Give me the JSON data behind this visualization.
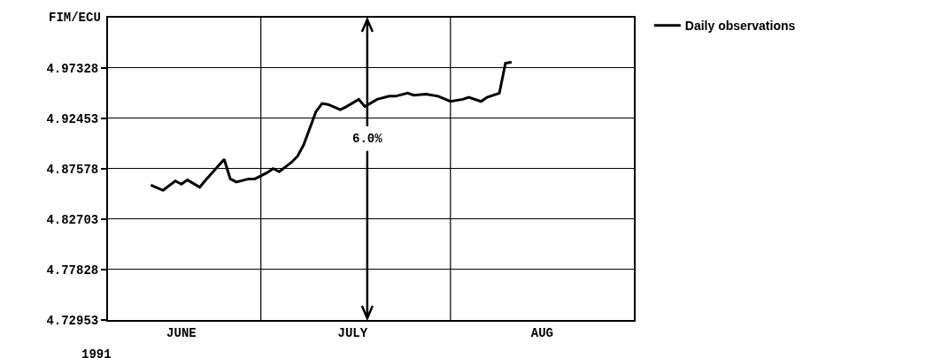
{
  "chart_data": {
    "type": "line",
    "ylabel": "FIM/ECU",
    "x": [
      "1991-06-13",
      "1991-06-15",
      "1991-06-17",
      "1991-06-18",
      "1991-06-19",
      "1991-06-21",
      "1991-06-22",
      "1991-06-25",
      "1991-06-26",
      "1991-06-27",
      "1991-06-29",
      "1991-06-30",
      "1991-07-02",
      "1991-07-03",
      "1991-07-04",
      "1991-07-06",
      "1991-07-07",
      "1991-07-08",
      "1991-07-10",
      "1991-07-11",
      "1991-07-12",
      "1991-07-14",
      "1991-07-15",
      "1991-07-17",
      "1991-07-18",
      "1991-07-20",
      "1991-07-22",
      "1991-07-23",
      "1991-07-25",
      "1991-07-26",
      "1991-07-28",
      "1991-07-30",
      "1991-08-01",
      "1991-08-03",
      "1991-08-04",
      "1991-08-06",
      "1991-08-07",
      "1991-08-09",
      "1991-08-10",
      "1991-08-11"
    ],
    "series": [
      {
        "name": "Daily observations",
        "color": "#000000",
        "values": [
          4.86,
          4.855,
          4.864,
          4.861,
          4.865,
          4.858,
          4.865,
          4.885,
          4.866,
          4.863,
          4.866,
          4.866,
          4.872,
          4.876,
          4.873,
          4.882,
          4.888,
          4.899,
          4.931,
          4.939,
          4.938,
          4.933,
          4.936,
          4.943,
          4.936,
          4.943,
          4.946,
          4.946,
          4.949,
          4.947,
          4.948,
          4.946,
          4.941,
          4.943,
          4.945,
          4.941,
          4.945,
          4.949,
          4.978,
          4.979
        ]
      }
    ],
    "xlim": [
      "1991-06-06",
      "1991-08-31"
    ],
    "xticks": [
      {
        "value": "1991-06-18",
        "label": "JUNE"
      },
      {
        "value": "1991-07-16",
        "label": "JULY"
      },
      {
        "value": "1991-08-16",
        "label": "AUG"
      }
    ],
    "ylim": [
      4.72953,
      5.022
    ],
    "yticks": [
      4.72953,
      4.77828,
      4.82703,
      4.87578,
      4.92453,
      4.97328
    ],
    "grid": "y",
    "ref_lines": [
      {
        "axis": "x",
        "value": "1991-07-01"
      },
      {
        "axis": "x",
        "value": "1991-08-01"
      }
    ],
    "annotations": [
      "6.0%",
      "1991"
    ],
    "legend": "top right",
    "marker": "none",
    "line_style": "solid"
  }
}
